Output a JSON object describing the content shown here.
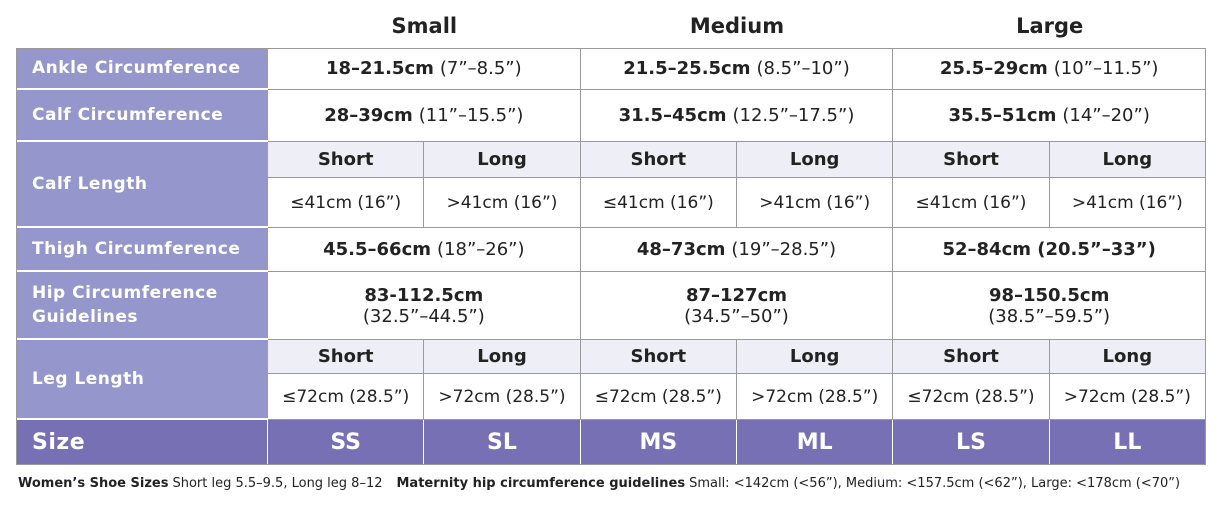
{
  "header": {
    "sizes": [
      "Small",
      "Medium",
      "Large"
    ]
  },
  "table": {
    "rows": [
      {
        "label": "Ankle Circumference",
        "cells": [
          {
            "bold": "18–21.5cm",
            "normal": "(7”–8.5”)"
          },
          {
            "bold": "21.5–25.5cm",
            "normal": "(8.5”–10”)"
          },
          {
            "bold": "25.5–29cm",
            "normal": "(10”–11.5”)"
          }
        ]
      },
      {
        "label": "Calf Circumference",
        "cells": [
          {
            "bold": "28–39cm",
            "normal": "(11”–15.5”)"
          },
          {
            "bold": "31.5–45cm",
            "normal": "(12.5”–17.5”)"
          },
          {
            "bold": "35.5–51cm",
            "normal": "(14”–20”)"
          }
        ]
      },
      {
        "label": "Calf Length",
        "subheaders": [
          "Short",
          "Long",
          "Short",
          "Long",
          "Short",
          "Long"
        ],
        "cells": [
          "≤41cm (16”)",
          ">41cm (16”)",
          "≤41cm (16”)",
          ">41cm (16”)",
          "≤41cm (16”)",
          ">41cm (16”)"
        ]
      },
      {
        "label": "Thigh Circumference",
        "cells": [
          {
            "bold": "45.5–66cm",
            "normal": "(18”–26”)"
          },
          {
            "bold": "48–73cm",
            "normal": "(19”–28.5”)"
          },
          {
            "bold": "52–84cm (20.5”–33”)"
          }
        ]
      },
      {
        "label": "Hip Circumference Guidelines",
        "cells": [
          {
            "bold": "83-112.5cm",
            "normal": "(32.5”–44.5”)"
          },
          {
            "bold": "87–127cm",
            "normal": "(34.5”–50”)"
          },
          {
            "bold": "98–150.5cm",
            "normal": "(38.5”–59.5”)"
          }
        ]
      },
      {
        "label": "Leg Length",
        "subheaders": [
          "Short",
          "Long",
          "Short",
          "Long",
          "Short",
          "Long"
        ],
        "cells": [
          "≤72cm (28.5”)",
          ">72cm (28.5”)",
          "≤72cm (28.5”)",
          ">72cm (28.5”)",
          "≤72cm (28.5”)",
          ">72cm (28.5”)"
        ]
      }
    ]
  },
  "size_row": {
    "label": "Size",
    "codes": [
      "SS",
      "SL",
      "MS",
      "ML",
      "LS",
      "LL"
    ]
  },
  "footer": [
    {
      "bold": "Women’s Shoe Sizes",
      "normal": "Short leg 5.5–9.5, Long leg 8–12"
    },
    {
      "bold": "Maternity hip circumference guidelines",
      "normal": "Small: <142cm (<56”), Medium: <157.5cm (<62”), Large: <178cm (<70”)"
    }
  ]
}
